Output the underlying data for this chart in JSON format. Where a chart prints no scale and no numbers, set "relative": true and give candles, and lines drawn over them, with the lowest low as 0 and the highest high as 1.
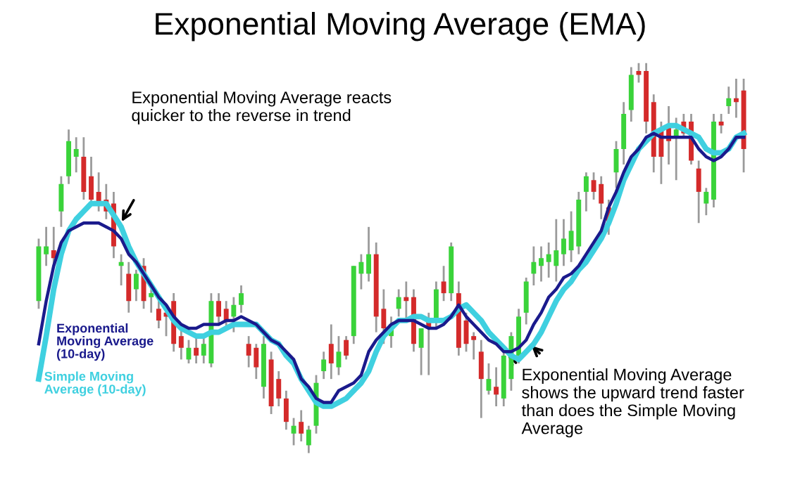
{
  "chart_data": {
    "type": "candlestick",
    "title": "Exponential Moving Average (EMA)",
    "relative": true,
    "tick_labels": false,
    "grid": false,
    "categories": [
      null,
      null,
      null,
      null,
      null,
      null,
      null,
      null,
      null,
      null,
      null,
      null,
      null,
      null,
      null,
      null,
      null,
      null,
      null,
      null,
      null,
      null,
      null,
      null,
      null,
      null,
      null,
      null,
      null,
      null,
      null,
      null,
      null,
      null,
      null,
      null,
      null,
      null,
      null,
      null,
      null,
      null,
      null,
      null,
      null,
      null,
      null,
      null,
      null,
      null,
      null,
      null,
      null,
      null,
      null,
      null,
      null,
      null,
      null,
      null,
      null,
      null,
      null,
      null,
      null,
      null,
      null,
      null,
      null,
      null,
      null,
      null,
      null,
      null,
      null,
      null,
      null,
      null,
      null,
      null,
      null,
      null,
      null,
      null,
      null,
      null,
      null,
      null,
      null,
      null,
      null,
      null,
      null,
      null,
      null
    ],
    "ohlc": [
      [
        0.39,
        0.55,
        0.37,
        0.53
      ],
      [
        0.51,
        0.58,
        0.48,
        0.53
      ],
      [
        0.52,
        0.58,
        0.48,
        0.5
      ],
      [
        0.62,
        0.71,
        0.58,
        0.69
      ],
      [
        0.71,
        0.83,
        0.69,
        0.8
      ],
      [
        0.76,
        0.81,
        0.72,
        0.78
      ],
      [
        0.76,
        0.81,
        0.65,
        0.67
      ],
      [
        0.71,
        0.76,
        0.64,
        0.65
      ],
      [
        0.67,
        0.72,
        0.62,
        0.64
      ],
      [
        0.65,
        0.69,
        0.6,
        0.62
      ],
      [
        0.64,
        0.67,
        0.5,
        0.53
      ],
      [
        0.48,
        0.51,
        0.43,
        0.49
      ],
      [
        0.46,
        0.49,
        0.36,
        0.39
      ],
      [
        0.42,
        0.47,
        0.39,
        0.46
      ],
      [
        0.48,
        0.5,
        0.37,
        0.39
      ],
      [
        0.4,
        0.42,
        0.36,
        0.41
      ],
      [
        0.37,
        0.39,
        0.32,
        0.34
      ],
      [
        0.36,
        0.37,
        0.3,
        0.35
      ],
      [
        0.39,
        0.41,
        0.26,
        0.28
      ],
      [
        0.3,
        0.32,
        0.24,
        0.27
      ],
      [
        0.24,
        0.29,
        0.23,
        0.27
      ],
      [
        0.27,
        0.3,
        0.23,
        0.25
      ],
      [
        0.25,
        0.3,
        0.23,
        0.28
      ],
      [
        0.23,
        0.41,
        0.22,
        0.39
      ],
      [
        0.39,
        0.41,
        0.33,
        0.35
      ],
      [
        0.37,
        0.39,
        0.32,
        0.34
      ],
      [
        0.35,
        0.4,
        0.31,
        0.38
      ],
      [
        0.38,
        0.43,
        0.36,
        0.41
      ],
      [
        0.28,
        0.3,
        0.22,
        0.25
      ],
      [
        0.27,
        0.28,
        0.19,
        0.22
      ],
      [
        0.17,
        0.3,
        0.14,
        0.28
      ],
      [
        0.24,
        0.26,
        0.1,
        0.12
      ],
      [
        0.19,
        0.21,
        0.12,
        0.14
      ],
      [
        0.14,
        0.16,
        0.06,
        0.08
      ],
      [
        0.05,
        0.09,
        0.02,
        0.07
      ],
      [
        0.08,
        0.11,
        0.03,
        0.05
      ],
      [
        0.02,
        0.07,
        0.0,
        0.06
      ],
      [
        0.07,
        0.2,
        0.05,
        0.18
      ],
      [
        0.21,
        0.26,
        0.19,
        0.24
      ],
      [
        0.28,
        0.33,
        0.19,
        0.23
      ],
      [
        0.22,
        0.3,
        0.2,
        0.26
      ],
      [
        0.29,
        0.3,
        0.24,
        0.25
      ],
      [
        0.3,
        0.48,
        0.28,
        0.48
      ],
      [
        0.46,
        0.51,
        0.42,
        0.49
      ],
      [
        0.46,
        0.58,
        0.44,
        0.51
      ],
      [
        0.51,
        0.54,
        0.31,
        0.35
      ],
      [
        0.37,
        0.42,
        0.28,
        0.32
      ],
      [
        0.3,
        0.35,
        0.27,
        0.33
      ],
      [
        0.37,
        0.42,
        0.35,
        0.4
      ],
      [
        0.4,
        0.44,
        0.34,
        0.39
      ],
      [
        0.4,
        0.42,
        0.26,
        0.28
      ],
      [
        0.27,
        0.32,
        0.2,
        0.32
      ],
      [
        0.34,
        0.36,
        0.2,
        0.32
      ],
      [
        0.34,
        0.44,
        0.32,
        0.42
      ],
      [
        0.44,
        0.48,
        0.39,
        0.41
      ],
      [
        0.41,
        0.54,
        0.39,
        0.53
      ],
      [
        0.41,
        0.44,
        0.25,
        0.27
      ],
      [
        0.34,
        0.36,
        0.26,
        0.28
      ],
      [
        0.3,
        0.31,
        0.24,
        0.29
      ],
      [
        0.26,
        0.29,
        0.09,
        0.19
      ],
      [
        0.16,
        0.23,
        0.15,
        0.19
      ],
      [
        0.17,
        0.22,
        0.12,
        0.15
      ],
      [
        0.14,
        0.26,
        0.12,
        0.25
      ],
      [
        0.19,
        0.31,
        0.16,
        0.3
      ],
      [
        0.25,
        0.37,
        0.23,
        0.35
      ],
      [
        0.36,
        0.45,
        0.33,
        0.44
      ],
      [
        0.46,
        0.53,
        0.43,
        0.49
      ],
      [
        0.48,
        0.53,
        0.44,
        0.5
      ],
      [
        0.49,
        0.54,
        0.45,
        0.51
      ],
      [
        0.48,
        0.6,
        0.44,
        0.52
      ],
      [
        0.51,
        0.6,
        0.48,
        0.55
      ],
      [
        0.52,
        0.62,
        0.49,
        0.57
      ],
      [
        0.53,
        0.67,
        0.51,
        0.65
      ],
      [
        0.67,
        0.72,
        0.62,
        0.71
      ],
      [
        0.7,
        0.72,
        0.65,
        0.67
      ],
      [
        0.69,
        0.71,
        0.6,
        0.64
      ],
      [
        0.63,
        0.65,
        0.56,
        0.59
      ],
      [
        0.72,
        0.8,
        0.68,
        0.78
      ],
      [
        0.78,
        0.9,
        0.74,
        0.87
      ],
      [
        0.88,
        0.99,
        0.85,
        0.97
      ],
      [
        0.98,
        1.0,
        0.95,
        0.97
      ],
      [
        0.98,
        1.0,
        0.82,
        0.85
      ],
      [
        0.9,
        0.92,
        0.72,
        0.76
      ],
      [
        0.83,
        0.85,
        0.69,
        0.76
      ],
      [
        0.84,
        0.89,
        0.74,
        0.8
      ],
      [
        0.81,
        0.86,
        0.7,
        0.83
      ],
      [
        0.85,
        0.87,
        0.81,
        0.82
      ],
      [
        0.85,
        0.87,
        0.74,
        0.75
      ],
      [
        0.73,
        0.75,
        0.59,
        0.67
      ],
      [
        0.64,
        0.68,
        0.61,
        0.67
      ],
      [
        0.65,
        0.87,
        0.63,
        0.85
      ],
      [
        0.85,
        0.87,
        0.82,
        0.84
      ],
      [
        0.89,
        0.94,
        0.87,
        0.91
      ],
      [
        0.91,
        0.96,
        0.86,
        0.9
      ],
      [
        0.93,
        0.96,
        0.72,
        0.78
      ]
    ],
    "series": [
      {
        "type": "line",
        "name": "Exponential Moving Average (10-day)",
        "color": "#1a1a8c",
        "values": [
          0.28,
          0.39,
          0.48,
          0.54,
          0.57,
          0.58,
          0.59,
          0.59,
          0.59,
          0.58,
          0.57,
          0.55,
          0.51,
          0.49,
          0.46,
          0.43,
          0.4,
          0.38,
          0.35,
          0.33,
          0.32,
          0.32,
          0.33,
          0.33,
          0.33,
          0.34,
          0.34,
          0.35,
          0.34,
          0.33,
          0.31,
          0.29,
          0.28,
          0.26,
          0.24,
          0.19,
          0.17,
          0.14,
          0.13,
          0.13,
          0.16,
          0.17,
          0.18,
          0.2,
          0.26,
          0.29,
          0.31,
          0.33,
          0.34,
          0.34,
          0.34,
          0.33,
          0.32,
          0.32,
          0.33,
          0.35,
          0.38,
          0.35,
          0.33,
          0.31,
          0.29,
          0.28,
          0.26,
          0.26,
          0.27,
          0.29,
          0.33,
          0.36,
          0.4,
          0.42,
          0.45,
          0.46,
          0.48,
          0.51,
          0.54,
          0.57,
          0.63,
          0.67,
          0.72,
          0.76,
          0.78,
          0.81,
          0.82,
          0.81,
          0.81,
          0.81,
          0.81,
          0.81,
          0.78,
          0.76,
          0.75,
          0.76,
          0.78,
          0.81,
          0.81
        ]
      },
      {
        "type": "line",
        "name": "Simple Moving Average (10-day)",
        "color": "#3fd0e0",
        "values": [
          0.19,
          0.3,
          0.42,
          0.51,
          0.57,
          0.6,
          0.62,
          0.64,
          0.64,
          0.64,
          0.61,
          0.58,
          0.53,
          0.49,
          0.46,
          0.43,
          0.4,
          0.37,
          0.34,
          0.32,
          0.31,
          0.3,
          0.3,
          0.31,
          0.31,
          0.32,
          0.33,
          0.33,
          0.33,
          0.33,
          0.31,
          0.29,
          0.28,
          0.25,
          0.23,
          0.19,
          0.16,
          0.13,
          0.12,
          0.12,
          0.13,
          0.14,
          0.16,
          0.18,
          0.21,
          0.26,
          0.3,
          0.32,
          0.34,
          0.34,
          0.35,
          0.35,
          0.34,
          0.34,
          0.34,
          0.35,
          0.37,
          0.38,
          0.36,
          0.34,
          0.31,
          0.29,
          0.27,
          0.25,
          0.24,
          0.26,
          0.28,
          0.31,
          0.35,
          0.39,
          0.42,
          0.44,
          0.47,
          0.49,
          0.52,
          0.55,
          0.59,
          0.64,
          0.7,
          0.74,
          0.78,
          0.8,
          0.82,
          0.83,
          0.84,
          0.84,
          0.83,
          0.82,
          0.81,
          0.78,
          0.77,
          0.77,
          0.78,
          0.81,
          0.82
        ]
      }
    ],
    "annotations": [
      "Exponential Moving Average reacts quicker to the reverse in trend",
      "Exponential Moving Average shows the upward trend faster than does the Simple Moving Average"
    ]
  }
}
